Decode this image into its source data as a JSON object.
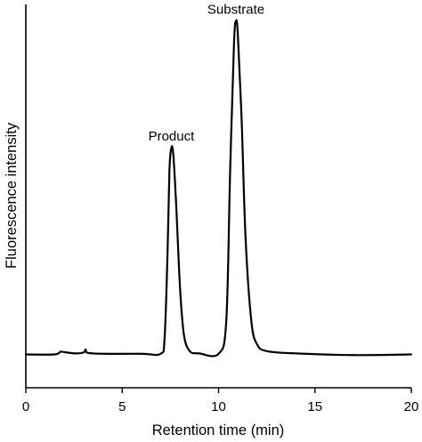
{
  "chart_data": {
    "type": "line",
    "title": "",
    "xlabel": "Retention time (min)",
    "ylabel": "Fluorescence intensity",
    "xlim": [
      0,
      20
    ],
    "xticks": [
      0,
      5,
      10,
      15,
      20
    ],
    "ylim": [
      -0.1,
      1.05
    ],
    "grid": false,
    "legend": "none",
    "series": [
      {
        "x": [
          0,
          1.5,
          1.8,
          2.1,
          2.6,
          3.0,
          3.1,
          3.2,
          4.0,
          6.0,
          7.0,
          7.2,
          7.35,
          7.45,
          7.55,
          7.65,
          7.8,
          8.0,
          8.2,
          8.5,
          9.0,
          10.0,
          10.4,
          10.6,
          10.8,
          10.9,
          11.0,
          11.2,
          11.4,
          11.7,
          12.0,
          12.5,
          14.0,
          17.0,
          20.0
        ],
        "y": [
          0.0,
          0.0,
          0.008,
          0.006,
          0.003,
          0.006,
          0.015,
          0.005,
          0.002,
          0.002,
          0.002,
          0.05,
          0.3,
          0.55,
          0.62,
          0.6,
          0.45,
          0.2,
          0.06,
          0.01,
          0.003,
          0.002,
          0.1,
          0.55,
          0.93,
          1.0,
          0.96,
          0.7,
          0.35,
          0.1,
          0.03,
          0.01,
          0.003,
          -0.002,
          0.0
        ]
      }
    ],
    "annotations": [
      {
        "text": "Product",
        "x": 7.55,
        "y": 0.62
      },
      {
        "text": "Substrate",
        "x": 10.9,
        "y": 1.0
      }
    ]
  }
}
